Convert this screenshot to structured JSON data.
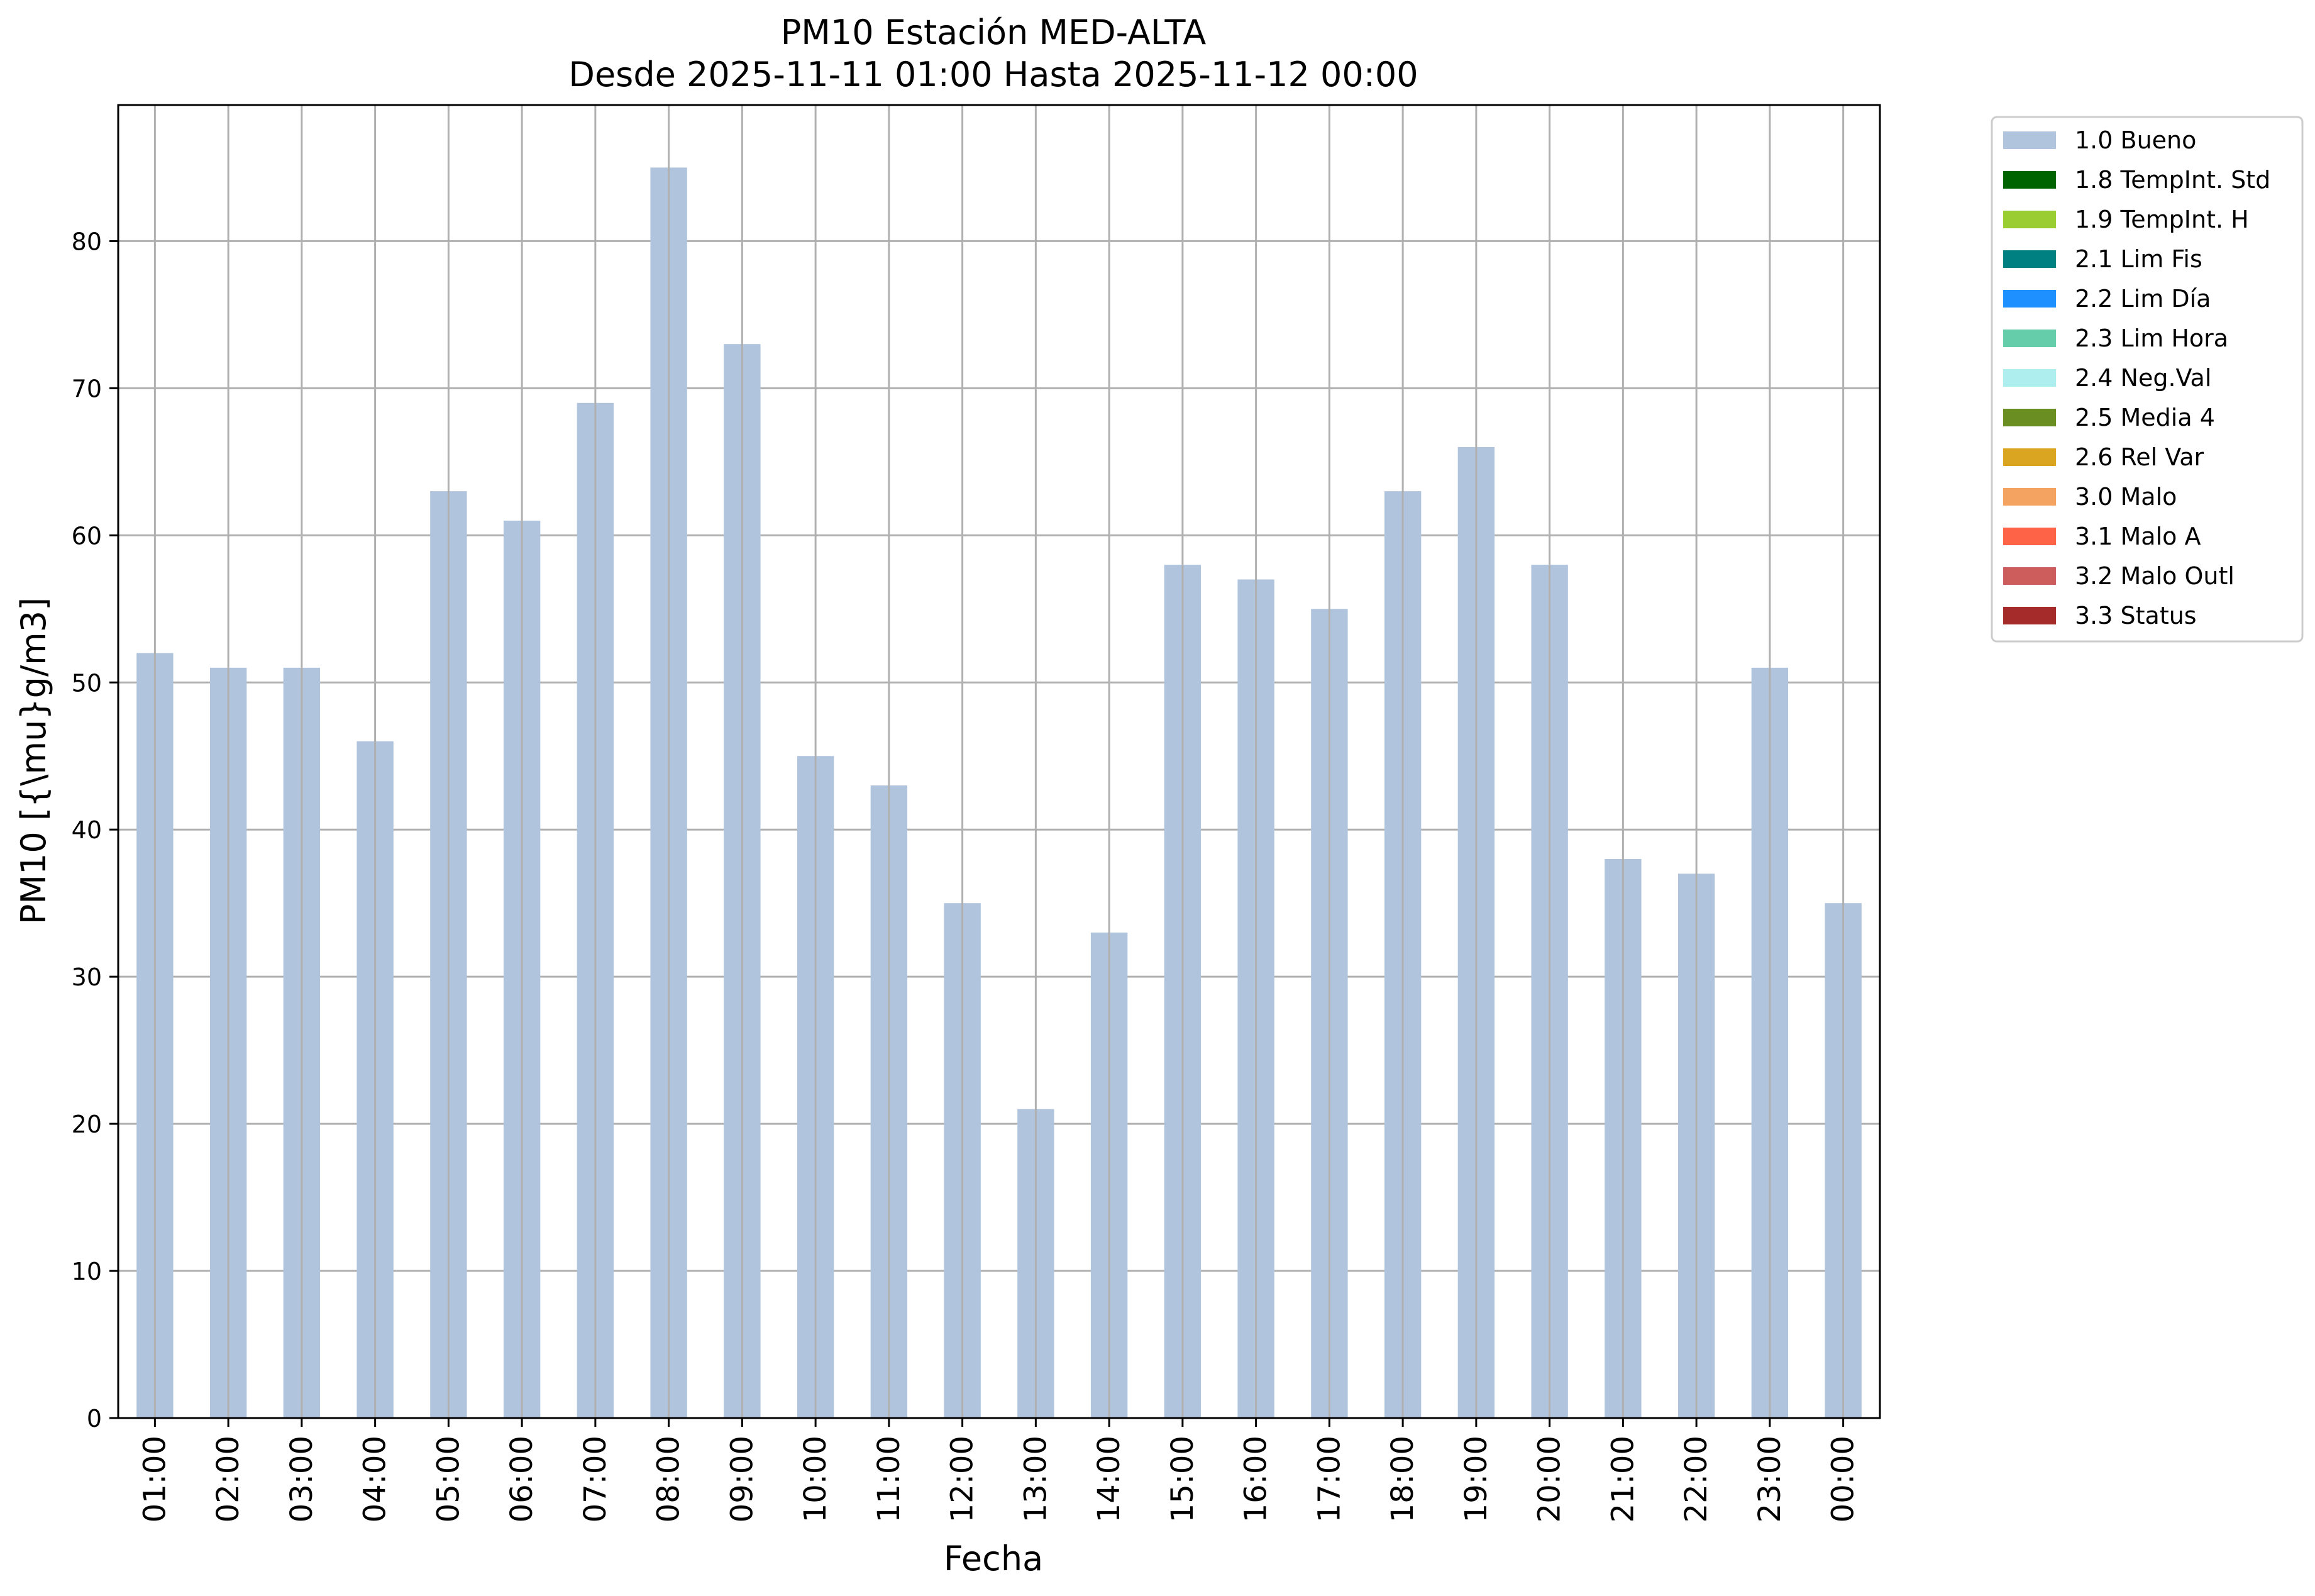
{
  "chart_data": {
    "type": "bar",
    "title": "PM10 Estación MED-ALTA",
    "subtitle": "Desde 2025-11-11 01:00 Hasta 2025-11-12 00:00",
    "xlabel": "Fecha",
    "ylabel": "PM10 [{\\mu}g/m3]",
    "categories": [
      "01:00",
      "02:00",
      "03:00",
      "04:00",
      "05:00",
      "06:00",
      "07:00",
      "08:00",
      "09:00",
      "10:00",
      "11:00",
      "12:00",
      "13:00",
      "14:00",
      "15:00",
      "16:00",
      "17:00",
      "18:00",
      "19:00",
      "20:00",
      "21:00",
      "22:00",
      "23:00",
      "00:00"
    ],
    "values": [
      52,
      51,
      51,
      46,
      63,
      61,
      69,
      85,
      73,
      45,
      43,
      35,
      21,
      33,
      58,
      57,
      55,
      63,
      66,
      58,
      38,
      37,
      51,
      35
    ],
    "ylim": [
      0,
      89.25
    ],
    "yticks": [
      0,
      10,
      20,
      30,
      40,
      50,
      60,
      70,
      80
    ],
    "grid": true,
    "bar_color": "#b0c4de",
    "legend_position": "outside-top-right",
    "legend": [
      {
        "label": "1.0 Bueno",
        "color": "#b0c4de"
      },
      {
        "label": "1.8 TempInt. Std",
        "color": "#006400"
      },
      {
        "label": "1.9 TempInt. H",
        "color": "#9acd32"
      },
      {
        "label": "2.1 Lim Fis",
        "color": "#008080"
      },
      {
        "label": "2.2 Lim Día",
        "color": "#1e90ff"
      },
      {
        "label": "2.3 Lim Hora",
        "color": "#66cdaa"
      },
      {
        "label": "2.4 Neg.Val",
        "color": "#afeeee"
      },
      {
        "label": "2.5 Media 4",
        "color": "#6b8e23"
      },
      {
        "label": "2.6 Rel Var",
        "color": "#daa520"
      },
      {
        "label": "3.0 Malo",
        "color": "#f4a460"
      },
      {
        "label": "3.1 Malo A",
        "color": "#ff6347"
      },
      {
        "label": "3.2 Malo Outl",
        "color": "#cd5c5c"
      },
      {
        "label": "3.3 Status",
        "color": "#a52a2a"
      }
    ]
  }
}
